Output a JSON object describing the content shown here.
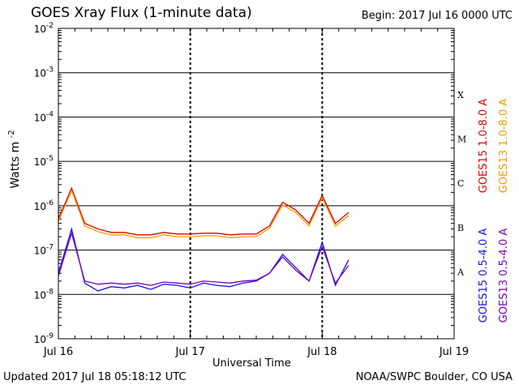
{
  "title": "GOES Xray Flux (1-minute data)",
  "begin_label": "Begin:  2017 Jul 16 0000 UTC",
  "updated_label": "Updated 2017 Jul 18 05:18:12 UTC",
  "credit_label": "NOAA/SWPC Boulder, CO USA",
  "chart_data": {
    "type": "line",
    "xlabel": "Universal Time",
    "ylabel": "Watts m",
    "ylabel_sup": "-2",
    "yscale": "log",
    "ylim": [
      1e-09,
      0.01
    ],
    "xlim_days": [
      0,
      3
    ],
    "y_ticks": [
      {
        "base": "10",
        "exp": "-2",
        "value": 0.01
      },
      {
        "base": "10",
        "exp": "-3",
        "value": 0.001
      },
      {
        "base": "10",
        "exp": "-4",
        "value": 0.0001
      },
      {
        "base": "10",
        "exp": "-5",
        "value": 1e-05
      },
      {
        "base": "10",
        "exp": "-6",
        "value": 1e-06
      },
      {
        "base": "10",
        "exp": "-7",
        "value": 1e-07
      },
      {
        "base": "10",
        "exp": "-8",
        "value": 1e-08
      },
      {
        "base": "10",
        "exp": "-9",
        "value": 1e-09
      }
    ],
    "x_ticks": [
      {
        "label": "Jul 16",
        "day": 0
      },
      {
        "label": "Jul 17",
        "day": 1
      },
      {
        "label": "Jul 18",
        "day": 2
      },
      {
        "label": "Jul 19",
        "day": 3
      }
    ],
    "flare_classes": [
      {
        "label": "X",
        "value": 0.0001
      },
      {
        "label": "M",
        "value": 1e-05
      },
      {
        "label": "C",
        "value": 1e-06
      },
      {
        "label": "B",
        "value": 1e-07
      },
      {
        "label": "A",
        "value": 1e-08
      }
    ],
    "series": [
      {
        "name": "GOES15 1.0-8.0 A",
        "color": "#e00000",
        "x": [
          0.0,
          0.1,
          0.2,
          0.3,
          0.4,
          0.5,
          0.6,
          0.7,
          0.8,
          0.9,
          1.0,
          1.1,
          1.2,
          1.3,
          1.4,
          1.5,
          1.6,
          1.7,
          1.8,
          1.9,
          2.0,
          2.1,
          2.2
        ],
        "y": [
          5e-07,
          2.5e-06,
          4e-07,
          3e-07,
          2.5e-07,
          2.5e-07,
          2.2e-07,
          2.2e-07,
          2.5e-07,
          2.3e-07,
          2.3e-07,
          2.4e-07,
          2.4e-07,
          2.2e-07,
          2.3e-07,
          2.3e-07,
          3.5e-07,
          1.2e-06,
          8e-07,
          4e-07,
          1.7e-06,
          4e-07,
          7e-07
        ]
      },
      {
        "name": "GOES13 1.0-8.0 A",
        "color": "#f0a000",
        "x": [
          0.0,
          0.1,
          0.2,
          0.3,
          0.4,
          0.5,
          0.6,
          0.7,
          0.8,
          0.9,
          1.0,
          1.1,
          1.2,
          1.3,
          1.4,
          1.5,
          1.6,
          1.7,
          1.8,
          1.9,
          2.0,
          2.1,
          2.2
        ],
        "y": [
          4.4e-07,
          2.2e-06,
          3.5e-07,
          2.6e-07,
          2.2e-07,
          2.2e-07,
          1.9e-07,
          1.9e-07,
          2.2e-07,
          2e-07,
          2e-07,
          2.1e-07,
          2.1e-07,
          1.9e-07,
          2e-07,
          2e-07,
          3.1e-07,
          1.05e-06,
          7e-07,
          3.5e-07,
          1.5e-06,
          3.5e-07,
          6e-07
        ]
      },
      {
        "name": "GOES15 0.5-4.0 A",
        "color": "#1414e6",
        "x": [
          0.0,
          0.1,
          0.2,
          0.3,
          0.4,
          0.5,
          0.6,
          0.7,
          0.8,
          0.9,
          1.0,
          1.1,
          1.2,
          1.3,
          1.4,
          1.5,
          1.6,
          1.7,
          1.8,
          1.9,
          2.0,
          2.1,
          2.2
        ],
        "y": [
          3e-08,
          3e-07,
          1.8e-08,
          1.2e-08,
          1.5e-08,
          1.4e-08,
          1.6e-08,
          1.3e-08,
          1.7e-08,
          1.6e-08,
          1.4e-08,
          1.8e-08,
          1.6e-08,
          1.5e-08,
          1.8e-08,
          2e-08,
          3e-08,
          8e-08,
          4e-08,
          2e-08,
          1.5e-07,
          1.6e-08,
          6e-08
        ]
      },
      {
        "name": "GOES13 0.5-4.0 A",
        "color": "#7a00b8",
        "x": [
          0.0,
          0.1,
          0.2,
          0.3,
          0.4,
          0.5,
          0.6,
          0.7,
          0.8,
          0.9,
          1.0,
          1.1,
          1.2,
          1.3,
          1.4,
          1.5,
          1.6,
          1.7,
          1.8,
          1.9,
          2.0,
          2.1,
          2.2
        ],
        "y": [
          2.6e-08,
          2.4e-07,
          2e-08,
          1.7e-08,
          1.8e-08,
          1.7e-08,
          1.8e-08,
          1.6e-08,
          1.9e-08,
          1.8e-08,
          1.7e-08,
          2e-08,
          1.9e-08,
          1.8e-08,
          2e-08,
          2.1e-08,
          3e-08,
          7e-08,
          3.5e-08,
          2e-08,
          1.2e-07,
          1.8e-08,
          4.5e-08
        ]
      }
    ]
  }
}
